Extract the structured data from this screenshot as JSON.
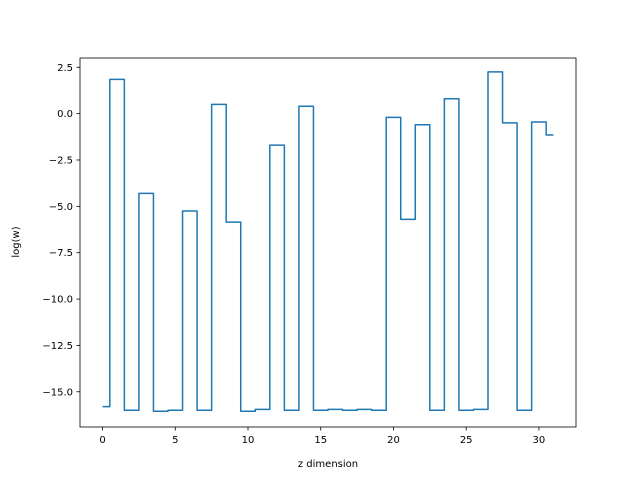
{
  "chart_data": {
    "type": "line",
    "drawstyle": "steps-mid",
    "title": "",
    "xlabel": "z dimension",
    "ylabel": "log(w)",
    "xlim": [
      -1.55,
      32.55
    ],
    "ylim": [
      -16.9,
      3.0
    ],
    "x_ticks": [
      0,
      5,
      10,
      15,
      20,
      25,
      30
    ],
    "y_ticks": [
      2.5,
      0.0,
      -2.5,
      -5.0,
      -7.5,
      -10.0,
      -12.5,
      -15.0
    ],
    "x_tick_labels": [
      "0",
      "5",
      "10",
      "15",
      "20",
      "25",
      "30"
    ],
    "y_tick_labels": [
      "2.5",
      "0.0",
      "−2.5",
      "−5.0",
      "−7.5",
      "−10.0",
      "−12.5",
      "−15.0"
    ],
    "grid": false,
    "legend": "none",
    "series": [
      {
        "color": "#1f77b4",
        "x": [
          0,
          1,
          2,
          3,
          4,
          5,
          6,
          7,
          8,
          9,
          10,
          11,
          12,
          13,
          14,
          15,
          16,
          17,
          18,
          19,
          20,
          21,
          22,
          23,
          24,
          25,
          26,
          27,
          28,
          29,
          30,
          31
        ],
        "values": [
          -15.8,
          1.85,
          -16.0,
          -4.3,
          -16.05,
          -16.0,
          -5.25,
          -16.0,
          0.5,
          -5.85,
          -16.05,
          -15.95,
          -1.7,
          -16.0,
          0.4,
          -16.0,
          -15.95,
          -16.0,
          -15.95,
          -16.0,
          -0.2,
          -5.7,
          -0.6,
          -16.0,
          0.8,
          -16.0,
          -15.95,
          2.25,
          -0.5,
          -16.0,
          -0.45,
          -1.15
        ]
      }
    ]
  }
}
